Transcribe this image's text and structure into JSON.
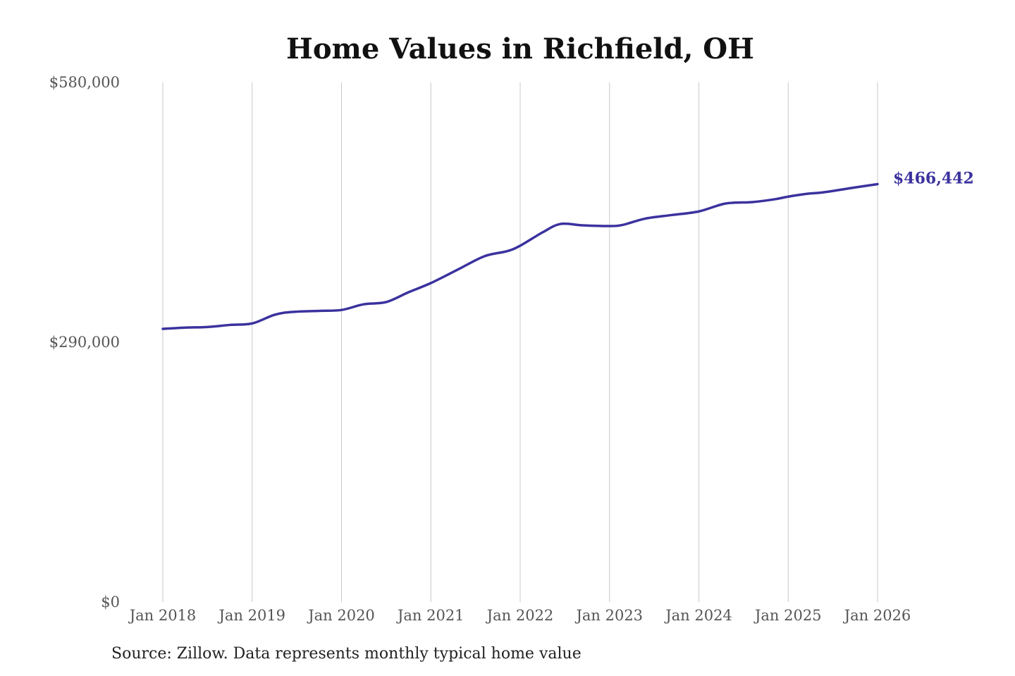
{
  "chart_data": {
    "type": "line",
    "title": "Home Values in Richfield, OH",
    "xlabel": "",
    "ylabel": "",
    "ylim": [
      0,
      580000
    ],
    "y_ticks": [
      {
        "value": 0,
        "label": "$0"
      },
      {
        "value": 290000,
        "label": "$290,000"
      },
      {
        "value": 580000,
        "label": "$580,000"
      }
    ],
    "x_range": [
      2018,
      2026
    ],
    "x_ticks": [
      {
        "value": 2018,
        "label": "Jan 2018"
      },
      {
        "value": 2019,
        "label": "Jan 2019"
      },
      {
        "value": 2020,
        "label": "Jan 2020"
      },
      {
        "value": 2021,
        "label": "Jan 2021"
      },
      {
        "value": 2022,
        "label": "Jan 2022"
      },
      {
        "value": 2023,
        "label": "Jan 2023"
      },
      {
        "value": 2024,
        "label": "Jan 2024"
      },
      {
        "value": 2025,
        "label": "Jan 2025"
      },
      {
        "value": 2026,
        "label": "Jan 2026"
      }
    ],
    "grid": "vertical",
    "legend": "none",
    "series": [
      {
        "name": "Typical home value",
        "color": "#3b329e",
        "x": [
          2018,
          2018.25,
          2018.5,
          2018.75,
          2019,
          2019.25,
          2019.45,
          2019.75,
          2020,
          2020.25,
          2020.5,
          2020.75,
          2021,
          2021.3,
          2021.6,
          2021.85,
          2022,
          2022.25,
          2022.45,
          2022.7,
          2023,
          2023.15,
          2023.4,
          2023.7,
          2024,
          2024.3,
          2024.6,
          2024.85,
          2025,
          2025.2,
          2025.4,
          2025.7,
          2026
        ],
        "values": [
          304900,
          306300,
          307000,
          309300,
          311000,
          320600,
          323800,
          325000,
          326000,
          332400,
          334800,
          345800,
          356000,
          371000,
          386000,
          391500,
          397700,
          412600,
          422000,
          420500,
          419700,
          421000,
          428000,
          432000,
          436000,
          444800,
          446400,
          449600,
          452500,
          455500,
          457400,
          462000,
          466442
        ]
      }
    ],
    "annotations": [
      {
        "label": "$466,442"
      }
    ]
  },
  "source": "Source: Zillow. Data represents monthly typical home value"
}
